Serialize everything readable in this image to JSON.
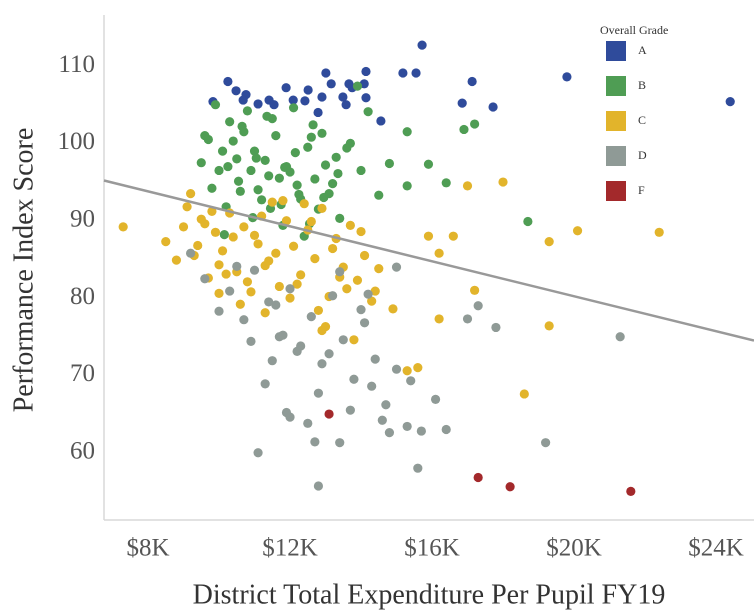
{
  "chart_data": {
    "type": "scatter",
    "x_label": "District Total Expenditure Per Pupil FY19",
    "y_label": "Performance Index Score",
    "legend_title": "Overall Grade",
    "legend": "upper right",
    "xlim": [
      6760,
      25070
    ],
    "ylim": [
      51.3,
      116.6
    ],
    "xticks": [
      {
        "value": 8000,
        "label": "$8K"
      },
      {
        "value": 12000,
        "label": "$12K"
      },
      {
        "value": 16000,
        "label": "$16K"
      },
      {
        "value": 20000,
        "label": "$20K"
      },
      {
        "value": 24000,
        "label": "$24K"
      }
    ],
    "yticks": [
      60,
      70,
      80,
      90,
      100,
      110
    ],
    "trend_line": {
      "x": [
        6760,
        25070
      ],
      "y": [
        95.2,
        74.5
      ],
      "color": "#999999"
    },
    "series": [
      {
        "name": "A",
        "color": "#2f4b9b",
        "x": [
          9830,
          10250,
          10480,
          10760,
          10680,
          11100,
          11410,
          11550,
          11890,
          12090,
          12420,
          12510,
          12900,
          13010,
          13160,
          13490,
          13660,
          13750,
          14140,
          14090,
          14140,
          14560,
          15180,
          15550,
          15720,
          16850,
          17130,
          17720,
          19800,
          24400,
          12790,
          13580
        ],
        "y": [
          105.4,
          108.0,
          106.8,
          106.3,
          105.6,
          105.1,
          105.6,
          105.0,
          107.2,
          105.6,
          105.5,
          106.9,
          106.0,
          109.1,
          107.7,
          106.0,
          107.7,
          107.2,
          109.3,
          107.7,
          105.9,
          102.9,
          109.1,
          109.1,
          112.7,
          105.2,
          108.0,
          104.7,
          108.6,
          105.4,
          104.0,
          105.0
        ]
      },
      {
        "name": "B",
        "color": "#4f9d54",
        "x": [
          9500,
          9700,
          9900,
          10100,
          10300,
          10500,
          10700,
          10900,
          11100,
          11300,
          11500,
          11700,
          11900,
          12100,
          12300,
          12500,
          12700,
          12900,
          13100,
          13300,
          9800,
          10000,
          10200,
          10400,
          10600,
          10800,
          11000,
          11200,
          11400,
          11600,
          11800,
          12000,
          12200,
          12400,
          12600,
          12800,
          13000,
          13200,
          13400,
          13600,
          9600,
          10150,
          10550,
          10950,
          11350,
          11750,
          12150,
          12550,
          12950,
          13350,
          10250,
          10650,
          11050,
          11450,
          11850,
          12250,
          12650,
          14000,
          14500,
          13900,
          14200,
          15300,
          15900,
          16900,
          17200,
          16400,
          18700,
          15300,
          13700,
          14800
        ],
        "y": [
          97.5,
          100.5,
          105,
          99,
          102.8,
          98,
          101.5,
          96.5,
          94,
          97.8,
          103.2,
          95.5,
          97,
          104.6,
          92.8,
          99.5,
          95.4,
          101.3,
          93.5,
          98.2,
          94.2,
          96.5,
          91.8,
          100.3,
          93.8,
          104.2,
          99,
          92.7,
          95.8,
          101,
          89.4,
          96.3,
          94.6,
          88,
          100.8,
          91.5,
          97.2,
          94.8,
          90.3,
          99.4,
          101,
          88.2,
          95.1,
          90.4,
          103.5,
          92.1,
          98.8,
          89.6,
          93,
          96.1,
          97,
          102.2,
          98.1,
          91.6,
          96.9,
          93.4,
          102.4,
          96.5,
          93.3,
          107.4,
          104.1,
          101.5,
          97.3,
          101.8,
          102.5,
          94.9,
          89.9,
          94.5,
          100,
          97.4
        ]
      },
      {
        "name": "C",
        "color": "#e2b42b",
        "x": [
          8500,
          8800,
          9100,
          9300,
          9500,
          9700,
          9900,
          10100,
          10300,
          10500,
          10700,
          10900,
          11100,
          11300,
          11500,
          11700,
          11900,
          12100,
          12300,
          12500,
          12700,
          12900,
          13100,
          13300,
          13500,
          13700,
          13900,
          14100,
          14300,
          14500,
          9200,
          9600,
          10000,
          10400,
          10800,
          11200,
          11600,
          12000,
          12400,
          12800,
          13200,
          13600,
          14000,
          9400,
          9800,
          10200,
          10600,
          11000,
          11400,
          11800,
          12200,
          12600,
          13000,
          13400,
          14400,
          14900,
          7300,
          9000,
          15300,
          15600,
          16200,
          16600,
          15900,
          17000,
          18000,
          19300,
          20100,
          22400,
          19300,
          18600,
          17200,
          16200,
          11300,
          12900,
          13800,
          10000
        ],
        "y": [
          87.3,
          84.9,
          91.8,
          85.5,
          90.2,
          82.6,
          88.5,
          86.1,
          91,
          83.4,
          89.2,
          80.8,
          87,
          84.2,
          92.4,
          81.5,
          90,
          86.7,
          83,
          88.8,
          85.1,
          91.6,
          80.2,
          87.7,
          84,
          89.4,
          82.3,
          85.5,
          79.6,
          83.8,
          93.5,
          89.6,
          84.3,
          87.9,
          82.1,
          90.6,
          85.8,
          80,
          92.2,
          78.4,
          86.4,
          81.2,
          88.6,
          86.8,
          91.2,
          83.1,
          79.2,
          88.1,
          84.8,
          92.6,
          81.8,
          89.9,
          76.3,
          82.7,
          80.9,
          78.6,
          89.2,
          89.2,
          70.6,
          71,
          85.8,
          88,
          88,
          94.5,
          95,
          87.3,
          88.7,
          88.5,
          76.4,
          67.6,
          81,
          77.3,
          78.1,
          75.8,
          74.6,
          80.6
        ]
      },
      {
        "name": "D",
        "color": "#8f9a96",
        "x": [
          9200,
          9600,
          10000,
          10300,
          10700,
          11000,
          11400,
          11700,
          12000,
          12300,
          12600,
          12900,
          13200,
          13500,
          13800,
          14100,
          14400,
          14700,
          15000,
          15300,
          10500,
          10900,
          11300,
          11600,
          11900,
          12200,
          12500,
          12800,
          13100,
          13400,
          13700,
          14000,
          14300,
          14600,
          15000,
          15400,
          15700,
          16100,
          11100,
          11500,
          12000,
          12700,
          13400,
          14800,
          15600,
          12800,
          19200,
          21300,
          17000,
          17300,
          17800,
          16400,
          11800,
          14200
        ],
        "y": [
          85.8,
          82.5,
          78.3,
          80.9,
          77.2,
          83.6,
          79.5,
          75,
          81.2,
          73.8,
          77.6,
          71.5,
          80.3,
          74.6,
          69.5,
          76.8,
          72.1,
          66.2,
          70.8,
          63.4,
          84.1,
          74.4,
          68.9,
          79.1,
          65.2,
          73.1,
          63.8,
          67.7,
          72.8,
          61.3,
          65.5,
          78.5,
          68.6,
          64.2,
          84,
          69.3,
          62.8,
          66.9,
          60,
          71.9,
          64.6,
          61.4,
          83.4,
          62.6,
          58,
          55.7,
          61.3,
          75,
          77.3,
          79,
          76.2,
          63,
          75.2,
          80.5
        ]
      },
      {
        "name": "F",
        "color": "#a3292b",
        "x": [
          13100,
          17300,
          18200,
          21600
        ],
        "y": [
          65,
          56.8,
          55.6,
          55
        ]
      }
    ]
  }
}
